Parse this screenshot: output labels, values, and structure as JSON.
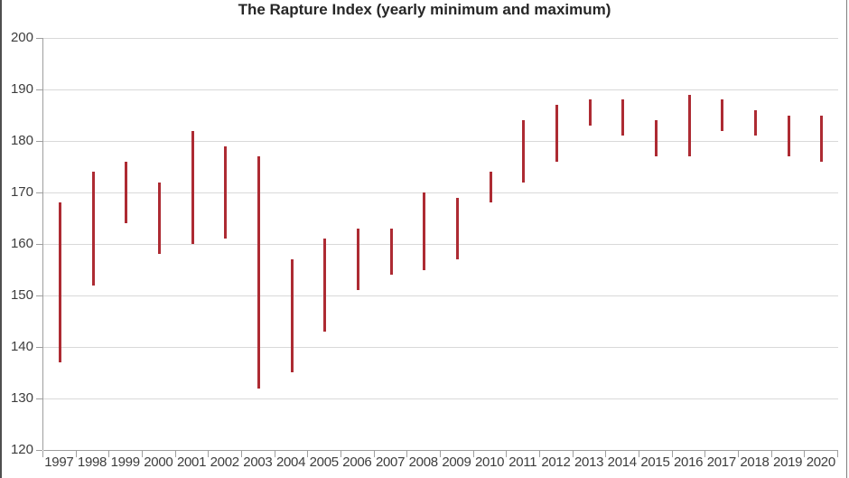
{
  "chart": {
    "title": "The Rapture Index (yearly minimum and maximum)"
  },
  "chart_data": {
    "type": "bar",
    "subtype": "min-max-range-bars",
    "title": "The Rapture Index (yearly minimum and maximum)",
    "xlabel": "",
    "ylabel": "",
    "ylim": [
      120,
      200
    ],
    "yticks": [
      200,
      190,
      180,
      170,
      160,
      150,
      140,
      130,
      120
    ],
    "grid": true,
    "legend": "none",
    "bar_color": "#ad2b33",
    "gridline_color": "#d9d9d9",
    "axis_color": "#9e9e9e",
    "text_color": "#3d3d3d",
    "categories": [
      "1997",
      "1998",
      "1999",
      "2000",
      "2001",
      "2002",
      "2003",
      "2004",
      "2005",
      "2006",
      "2007",
      "2008",
      "2009",
      "2010",
      "2011",
      "2012",
      "2013",
      "2014",
      "2015",
      "2016",
      "2017",
      "2018",
      "2019",
      "2020"
    ],
    "series": [
      {
        "name": "yearly minimum",
        "values": [
          137,
          152,
          164,
          158,
          160,
          161,
          132,
          135,
          143,
          151,
          154,
          155,
          157,
          168,
          172,
          176,
          183,
          181,
          177,
          177,
          182,
          181,
          177,
          176
        ]
      },
      {
        "name": "yearly maximum",
        "values": [
          168,
          174,
          176,
          172,
          182,
          179,
          177,
          157,
          161,
          163,
          163,
          170,
          169,
          174,
          184,
          187,
          188,
          188,
          184,
          189,
          188,
          186,
          185,
          185
        ]
      }
    ]
  }
}
